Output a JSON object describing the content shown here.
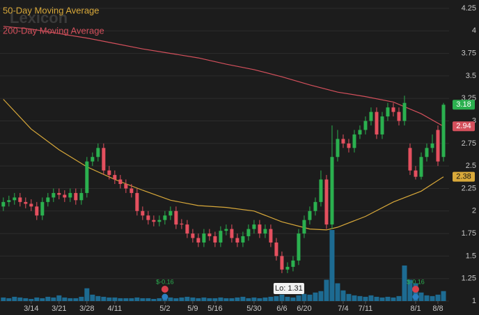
{
  "chart_data": {
    "type": "candlestick",
    "watermark": "Lexicon",
    "xlim": [
      -0.6,
      80
    ],
    "xticks": [
      {
        "value": 5,
        "label": "3/14"
      },
      {
        "value": 10,
        "label": "3/21"
      },
      {
        "value": 15,
        "label": "3/28"
      },
      {
        "value": 20,
        "label": "4/11"
      },
      {
        "value": 29,
        "label": "5/2"
      },
      {
        "value": 34,
        "label": "5/9"
      },
      {
        "value": 38,
        "label": "5/16"
      },
      {
        "value": 45,
        "label": "5/30"
      },
      {
        "value": 50,
        "label": "6/6"
      },
      {
        "value": 54,
        "label": "6/20"
      },
      {
        "value": 61,
        "label": "7/4"
      },
      {
        "value": 65,
        "label": "7/11"
      },
      {
        "value": 74,
        "label": "8/1"
      },
      {
        "value": 78,
        "label": "8/8"
      }
    ],
    "ylim": [
      1,
      4.25
    ],
    "yticks": [
      1,
      1.25,
      1.5,
      1.75,
      2,
      2.25,
      2.5,
      2.75,
      3,
      3.25,
      3.5,
      3.75,
      4,
      4.25
    ],
    "grid": true,
    "up_color": "#2bb04f",
    "down_color": "#e5505f",
    "volume_color": "#1d6b92",
    "open": [
      2.05,
      2.1,
      2.12,
      2.15,
      2.1,
      2.08,
      2.05,
      1.95,
      2.1,
      2.15,
      2.2,
      2.18,
      2.15,
      2.2,
      2.12,
      2.2,
      2.55,
      2.6,
      2.7,
      2.45,
      2.4,
      2.35,
      2.3,
      2.25,
      2.2,
      2.0,
      1.95,
      1.9,
      1.88,
      1.9,
      1.95,
      2.0,
      1.86,
      1.85,
      1.75,
      1.7,
      1.65,
      1.75,
      1.72,
      1.65,
      1.78,
      1.8,
      1.7,
      1.65,
      1.72,
      1.8,
      1.85,
      1.75,
      1.8,
      1.65,
      1.5,
      1.35,
      1.38,
      1.45,
      1.75,
      1.9,
      2.0,
      2.1,
      2.35,
      1.85,
      2.6,
      2.8,
      2.75,
      2.7,
      2.85,
      2.9,
      3.0,
      3.1,
      2.85,
      3.05,
      3.15,
      3.1,
      3.0,
      2.7,
      2.45,
      2.38,
      2.6,
      2.7,
      2.9,
      2.6
    ],
    "high": [
      2.15,
      2.17,
      2.2,
      2.2,
      2.15,
      2.13,
      2.1,
      2.15,
      2.2,
      2.25,
      2.25,
      2.23,
      2.25,
      2.25,
      2.25,
      2.6,
      2.65,
      2.75,
      2.75,
      2.5,
      2.45,
      2.4,
      2.35,
      2.3,
      2.25,
      2.05,
      2.0,
      1.95,
      1.95,
      2.0,
      2.05,
      2.05,
      1.91,
      1.9,
      1.8,
      1.75,
      1.8,
      1.8,
      1.77,
      1.83,
      1.85,
      1.85,
      1.75,
      1.77,
      1.85,
      1.9,
      1.9,
      1.85,
      1.85,
      1.7,
      1.55,
      1.43,
      1.5,
      1.8,
      1.95,
      2.05,
      2.15,
      2.45,
      2.4,
      2.95,
      2.9,
      2.85,
      2.8,
      2.9,
      2.95,
      3.05,
      3.15,
      3.15,
      3.1,
      3.2,
      3.2,
      3.15,
      3.28,
      2.75,
      2.5,
      2.65,
      2.75,
      2.85,
      2.95,
      3.2
    ],
    "low": [
      2.0,
      2.05,
      2.07,
      2.05,
      2.03,
      2.0,
      1.9,
      1.9,
      2.05,
      2.1,
      2.13,
      2.1,
      2.1,
      2.07,
      2.07,
      2.15,
      2.5,
      2.55,
      2.4,
      2.35,
      2.3,
      2.25,
      2.2,
      2.15,
      1.95,
      1.9,
      1.85,
      1.83,
      1.83,
      1.85,
      1.9,
      1.8,
      1.8,
      1.7,
      1.65,
      1.6,
      1.6,
      1.67,
      1.6,
      1.6,
      1.73,
      1.65,
      1.6,
      1.6,
      1.67,
      1.75,
      1.7,
      1.7,
      1.6,
      1.45,
      1.31,
      1.31,
      1.33,
      1.4,
      1.7,
      1.85,
      1.95,
      2.05,
      1.8,
      1.8,
      2.55,
      2.7,
      2.65,
      2.65,
      2.8,
      2.85,
      2.95,
      2.8,
      2.8,
      3.0,
      3.05,
      2.95,
      2.95,
      2.4,
      2.35,
      2.35,
      2.55,
      2.65,
      2.5,
      2.55
    ],
    "close": [
      2.1,
      2.12,
      2.15,
      2.1,
      2.08,
      2.05,
      1.95,
      2.1,
      2.15,
      2.2,
      2.18,
      2.15,
      2.2,
      2.12,
      2.2,
      2.55,
      2.6,
      2.7,
      2.45,
      2.4,
      2.35,
      2.3,
      2.25,
      2.2,
      2.0,
      1.95,
      1.9,
      1.88,
      1.9,
      1.95,
      2.0,
      1.85,
      1.85,
      1.75,
      1.7,
      1.65,
      1.75,
      1.72,
      1.65,
      1.78,
      1.8,
      1.7,
      1.65,
      1.72,
      1.8,
      1.85,
      1.75,
      1.8,
      1.65,
      1.5,
      1.35,
      1.38,
      1.45,
      1.75,
      1.9,
      2.0,
      2.1,
      2.35,
      1.85,
      2.6,
      2.8,
      2.75,
      2.7,
      2.85,
      2.9,
      3.0,
      3.1,
      2.85,
      3.05,
      3.15,
      3.1,
      3.0,
      3.2,
      2.45,
      2.38,
      2.6,
      2.7,
      2.75,
      2.55,
      3.18
    ],
    "volume": [
      5,
      4,
      6,
      5,
      4,
      3,
      5,
      4,
      6,
      5,
      8,
      5,
      4,
      4,
      6,
      18,
      9,
      7,
      6,
      5,
      5,
      4,
      4,
      4,
      5,
      4,
      4,
      3,
      4,
      4,
      5,
      4,
      5,
      6,
      5,
      4,
      5,
      4,
      4,
      5,
      4,
      4,
      5,
      6,
      4,
      5,
      4,
      5,
      6,
      7,
      9,
      6,
      5,
      8,
      10,
      9,
      12,
      14,
      30,
      100,
      25,
      15,
      10,
      8,
      7,
      6,
      8,
      6,
      5,
      6,
      5,
      7,
      50,
      30,
      25,
      12,
      8,
      7,
      9,
      14
    ],
    "series": [
      {
        "name": "50-Day Moving Average",
        "color": "#d9a93a",
        "x": [
          0,
          5,
          10,
          15,
          20,
          25,
          30,
          35,
          40,
          45,
          50,
          55,
          58,
          60,
          65,
          70,
          75,
          79
        ],
        "values": [
          3.24,
          2.91,
          2.68,
          2.49,
          2.35,
          2.23,
          2.12,
          2.06,
          2.04,
          2.0,
          1.88,
          1.8,
          1.79,
          1.82,
          1.94,
          2.1,
          2.22,
          2.38
        ]
      },
      {
        "name": "200-Day Moving Average",
        "color": "#d4505c",
        "x": [
          0,
          5,
          10,
          15,
          20,
          25,
          30,
          35,
          40,
          45,
          50,
          55,
          60,
          65,
          70,
          75,
          79
        ],
        "values": [
          4.05,
          4.02,
          3.97,
          3.92,
          3.86,
          3.8,
          3.75,
          3.7,
          3.63,
          3.57,
          3.49,
          3.4,
          3.32,
          3.27,
          3.21,
          3.08,
          2.94
        ]
      }
    ],
    "events": [
      {
        "label": "$-0.16",
        "index": 29
      },
      {
        "label": "$-0.16",
        "index": 74
      }
    ],
    "low_label": {
      "text": "Lo: 1.31",
      "index": 50
    }
  }
}
